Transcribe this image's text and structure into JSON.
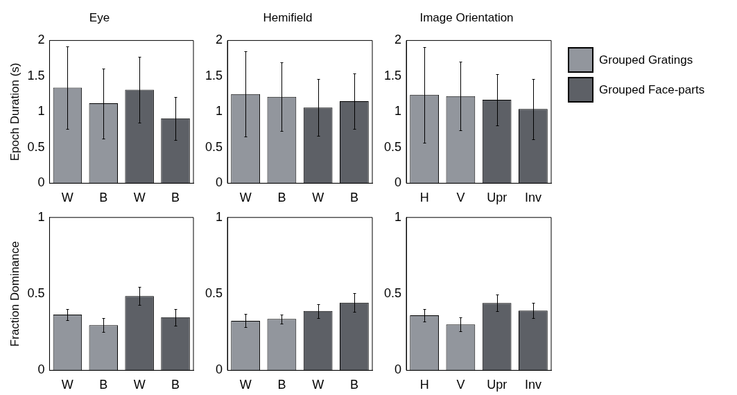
{
  "chart_data": [
    {
      "type": "bar",
      "title": "Eye",
      "ylabel": "Epoch Duration (s)",
      "categories": [
        "W",
        "B",
        "W",
        "B"
      ],
      "ylim": [
        0,
        2
      ],
      "yticks": [
        0,
        0.5,
        1,
        1.5,
        2
      ],
      "series": [
        {
          "color": "#92969d",
          "values": [
            1.34,
            1.12,
            null,
            null
          ],
          "errors": [
            0.58,
            0.49,
            null,
            null
          ]
        },
        {
          "color": "#5d6066",
          "values": [
            null,
            null,
            1.31,
            0.91
          ],
          "errors": [
            null,
            null,
            0.46,
            0.3
          ]
        }
      ]
    },
    {
      "type": "bar",
      "title": "Hemifield",
      "categories": [
        "W",
        "B",
        "W",
        "B"
      ],
      "ylim": [
        0,
        2
      ],
      "yticks": [
        0,
        0.5,
        1,
        1.5,
        2
      ],
      "series": [
        {
          "color": "#92969d",
          "values": [
            1.25,
            1.21,
            null,
            null
          ],
          "errors": [
            0.6,
            0.48,
            null,
            null
          ]
        },
        {
          "color": "#5d6066",
          "values": [
            null,
            null,
            1.06,
            1.15
          ],
          "errors": [
            null,
            null,
            0.4,
            0.39
          ]
        }
      ]
    },
    {
      "type": "bar",
      "title": "Image Orientation",
      "categories": [
        "H",
        "V",
        "Upr",
        "Inv"
      ],
      "ylim": [
        0,
        2
      ],
      "yticks": [
        0,
        0.5,
        1,
        1.5,
        2
      ],
      "legend": "right",
      "series": [
        {
          "name": "Grouped Gratings",
          "color": "#92969d",
          "values": [
            1.24,
            1.22,
            null,
            null
          ],
          "errors": [
            0.67,
            0.48,
            null,
            null
          ]
        },
        {
          "name": "Grouped Face-parts",
          "color": "#5d6066",
          "values": [
            null,
            null,
            1.17,
            1.04
          ],
          "errors": [
            null,
            null,
            0.36,
            0.42
          ]
        }
      ]
    },
    {
      "type": "bar",
      "ylabel": "Fraction Dominance",
      "categories": [
        "W",
        "B",
        "W",
        "B"
      ],
      "ylim": [
        0,
        1
      ],
      "yticks": [
        0,
        0.5,
        1
      ],
      "series": [
        {
          "color": "#92969d",
          "values": [
            0.365,
            0.295,
            null,
            null
          ],
          "errors": [
            0.035,
            0.045,
            null,
            null
          ]
        },
        {
          "color": "#5d6066",
          "values": [
            null,
            null,
            0.486,
            0.347
          ],
          "errors": [
            null,
            null,
            0.06,
            0.055
          ]
        }
      ]
    },
    {
      "type": "bar",
      "categories": [
        "W",
        "B",
        "W",
        "B"
      ],
      "ylim": [
        0,
        1
      ],
      "yticks": [
        0,
        0.5,
        1
      ],
      "series": [
        {
          "color": "#92969d",
          "values": [
            0.324,
            0.336,
            null,
            null
          ],
          "errors": [
            0.043,
            0.03,
            null,
            null
          ]
        },
        {
          "color": "#5d6066",
          "values": [
            null,
            null,
            0.388,
            0.443
          ],
          "errors": [
            null,
            null,
            0.046,
            0.06
          ]
        }
      ]
    },
    {
      "type": "bar",
      "categories": [
        "H",
        "V",
        "Upr",
        "Inv"
      ],
      "ylim": [
        0,
        1
      ],
      "yticks": [
        0,
        0.5,
        1
      ],
      "series": [
        {
          "color": "#92969d",
          "values": [
            0.36,
            0.3,
            null,
            null
          ],
          "errors": [
            0.04,
            0.045,
            null,
            null
          ]
        },
        {
          "color": "#5d6066",
          "values": [
            null,
            null,
            0.44,
            0.39
          ],
          "errors": [
            null,
            null,
            0.055,
            0.05
          ]
        }
      ]
    }
  ]
}
